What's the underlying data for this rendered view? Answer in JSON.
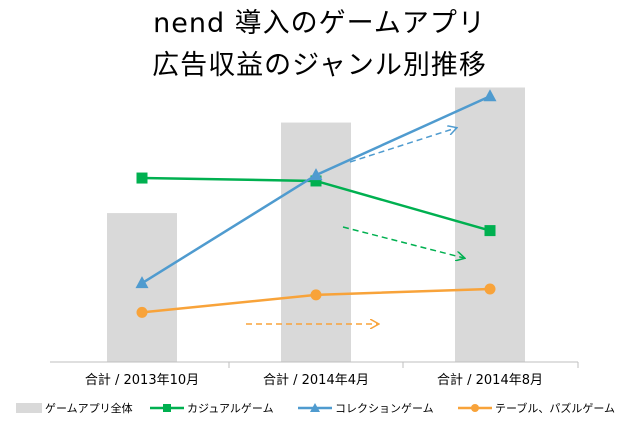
{
  "title_line1": "nend 導入のゲームアプリ",
  "title_line2": "広告収益のジャンル別推移",
  "chart_data": {
    "type": "bar+line",
    "categories": [
      "合計 / 2013年10月",
      "合計 / 2014年4月",
      "合計 / 2014年8月"
    ],
    "ylim": [
      0,
      100
    ],
    "grid": false,
    "legend_position": "bottom",
    "bar_series": {
      "name": "ゲームアプリ全体",
      "color": "#d9d9d9",
      "values": [
        51,
        82,
        94
      ]
    },
    "line_series": [
      {
        "name": "カジュアルゲーム",
        "color": "#00b050",
        "marker": "square",
        "values": [
          63,
          62,
          45
        ]
      },
      {
        "name": "コレクションゲーム",
        "color": "#4f9bcf",
        "marker": "triangle",
        "values": [
          27,
          64,
          91
        ]
      },
      {
        "name": "テーブル、パズルゲーム",
        "color": "#f8a33a",
        "marker": "circle",
        "values": [
          17,
          23,
          25
        ]
      }
    ],
    "annotations": [
      {
        "kind": "dashed-arrow",
        "direction": "up",
        "color": "#4f9bcf"
      },
      {
        "kind": "dashed-arrow",
        "direction": "down",
        "color": "#00b050"
      },
      {
        "kind": "dashed-arrow",
        "direction": "flat",
        "color": "#f8a33a"
      }
    ]
  }
}
